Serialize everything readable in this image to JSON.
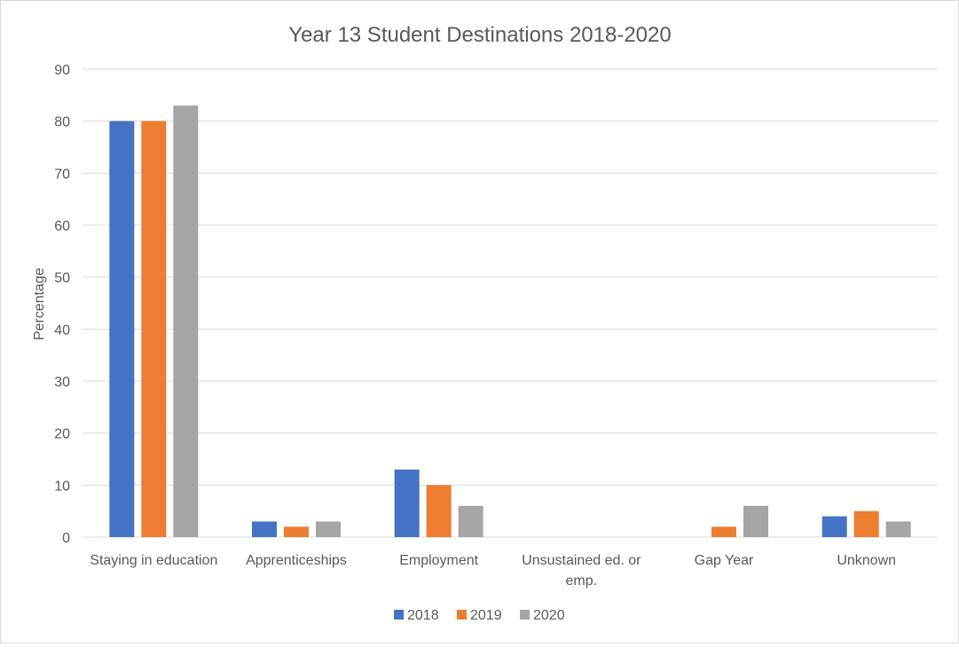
{
  "chart_data": {
    "type": "bar",
    "title": "Year 13 Student Destinations 2018-2020",
    "xlabel": "",
    "ylabel": "Percentage",
    "ylim": [
      0,
      90
    ],
    "yticks": [
      0,
      10,
      20,
      30,
      40,
      50,
      60,
      70,
      80,
      90
    ],
    "categories": [
      [
        "Staying in education"
      ],
      [
        "Apprenticeships"
      ],
      [
        "Employment"
      ],
      [
        "Unsustained ed. or",
        "emp."
      ],
      [
        "Gap Year"
      ],
      [
        "Unknown"
      ]
    ],
    "series": [
      {
        "name": "2018",
        "color": "#4472C4",
        "values": [
          80,
          3,
          13,
          0,
          0,
          4
        ]
      },
      {
        "name": "2019",
        "color": "#ED7D31",
        "values": [
          80,
          2,
          10,
          0,
          2,
          5
        ]
      },
      {
        "name": "2020",
        "color": "#A5A5A5",
        "values": [
          83,
          3,
          6,
          0,
          6,
          3
        ]
      }
    ],
    "grid": true,
    "legend_position": "bottom"
  }
}
